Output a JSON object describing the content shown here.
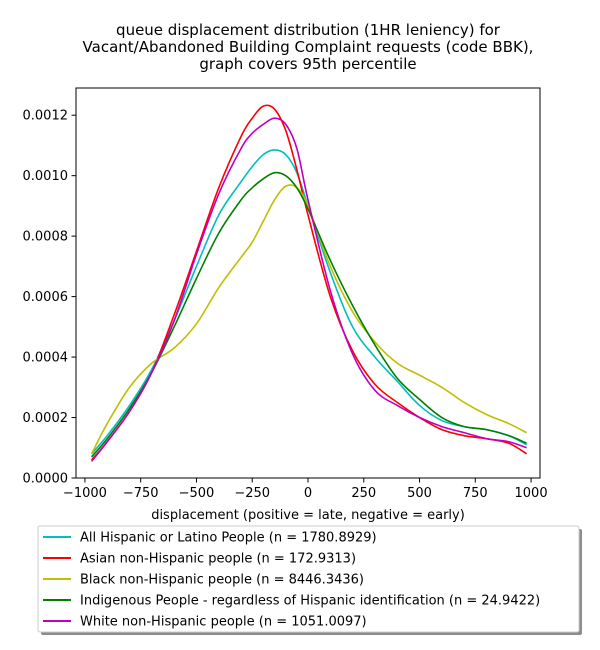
{
  "chart_data": {
    "type": "line",
    "title_lines": [
      "queue displacement distribution (1HR leniency) for",
      "Vacant/Abandoned Building Complaint  requests (code BBK),",
      "graph covers 95th percentile"
    ],
    "xlabel": "displacement (positive = late, negative = early)",
    "ylabel": "",
    "xlim": [
      -1040,
      1040
    ],
    "ylim": [
      0,
      0.00129
    ],
    "xticks": [
      -1000,
      -750,
      -500,
      -250,
      0,
      250,
      500,
      750,
      1000
    ],
    "xtick_labels": [
      "−1000",
      "−750",
      "−500",
      "−250",
      "0",
      "250",
      "500",
      "750",
      "1000"
    ],
    "yticks": [
      0,
      0.0002,
      0.0004,
      0.0006,
      0.0008,
      0.001,
      0.0012
    ],
    "ytick_labels": [
      "0.0000",
      "0.0002",
      "0.0004",
      "0.0006",
      "0.0008",
      "0.0010",
      "0.0012"
    ],
    "grid": false,
    "legend_position": "below",
    "x": [
      -970,
      -900,
      -800,
      -700,
      -600,
      -500,
      -400,
      -300,
      -250,
      -200,
      -150,
      -100,
      -50,
      0,
      100,
      200,
      300,
      400,
      500,
      600,
      700,
      800,
      900,
      980
    ],
    "series": [
      {
        "name": "All Hispanic or Latino People (n = 1780.8929)",
        "color": "#00bfbf",
        "values": [
          8e-05,
          0.00014,
          0.00024,
          0.00036,
          0.00052,
          0.0007,
          0.00087,
          0.00098,
          0.00103,
          0.00107,
          0.001085,
          0.00107,
          0.00101,
          0.0009,
          0.00068,
          0.0005,
          0.0004,
          0.00032,
          0.00024,
          0.00019,
          0.00017,
          0.00016,
          0.00014,
          0.00011
        ]
      },
      {
        "name": "Asian non-Hispanic people (n = 172.9313)",
        "color": "#ff0000",
        "values": [
          6e-05,
          0.00012,
          0.00022,
          0.00035,
          0.00054,
          0.00075,
          0.00096,
          0.00113,
          0.00119,
          0.00123,
          0.00122,
          0.00115,
          0.00102,
          0.00087,
          0.0006,
          0.00042,
          0.00031,
          0.00025,
          0.0002,
          0.00016,
          0.00014,
          0.00013,
          0.000115,
          8e-05
        ]
      },
      {
        "name": "Black non-Hispanic people (n = 8446.3436)",
        "color": "#bfbf00",
        "values": [
          8e-05,
          0.00018,
          0.0003,
          0.00038,
          0.00043,
          0.00051,
          0.00063,
          0.00073,
          0.00078,
          0.00085,
          0.00092,
          0.000965,
          0.00096,
          0.0009,
          0.0007,
          0.00055,
          0.00045,
          0.00038,
          0.00034,
          0.0003,
          0.00025,
          0.00021,
          0.00018,
          0.00015
        ]
      },
      {
        "name": "Indigenous People - regardless of Hispanic identification (n = 24.9422)",
        "color": "#008000",
        "values": [
          7e-05,
          0.00013,
          0.00023,
          0.00035,
          0.0005,
          0.00066,
          0.00081,
          0.00092,
          0.00096,
          0.00099,
          0.00101,
          0.001,
          0.00096,
          0.00089,
          0.00072,
          0.00057,
          0.00044,
          0.00033,
          0.00026,
          0.0002,
          0.00017,
          0.00016,
          0.00014,
          0.000115
        ]
      },
      {
        "name": "White non-Hispanic people (n = 1051.0097)",
        "color": "#bf00bf",
        "values": [
          5.5e-05,
          0.00012,
          0.00022,
          0.00035,
          0.00052,
          0.00074,
          0.00094,
          0.00109,
          0.00114,
          0.00117,
          0.00119,
          0.00117,
          0.00109,
          0.00092,
          0.00062,
          0.00041,
          0.00029,
          0.00024,
          0.0002,
          0.00017,
          0.00015,
          0.00013,
          0.00012,
          0.0001
        ]
      }
    ]
  }
}
